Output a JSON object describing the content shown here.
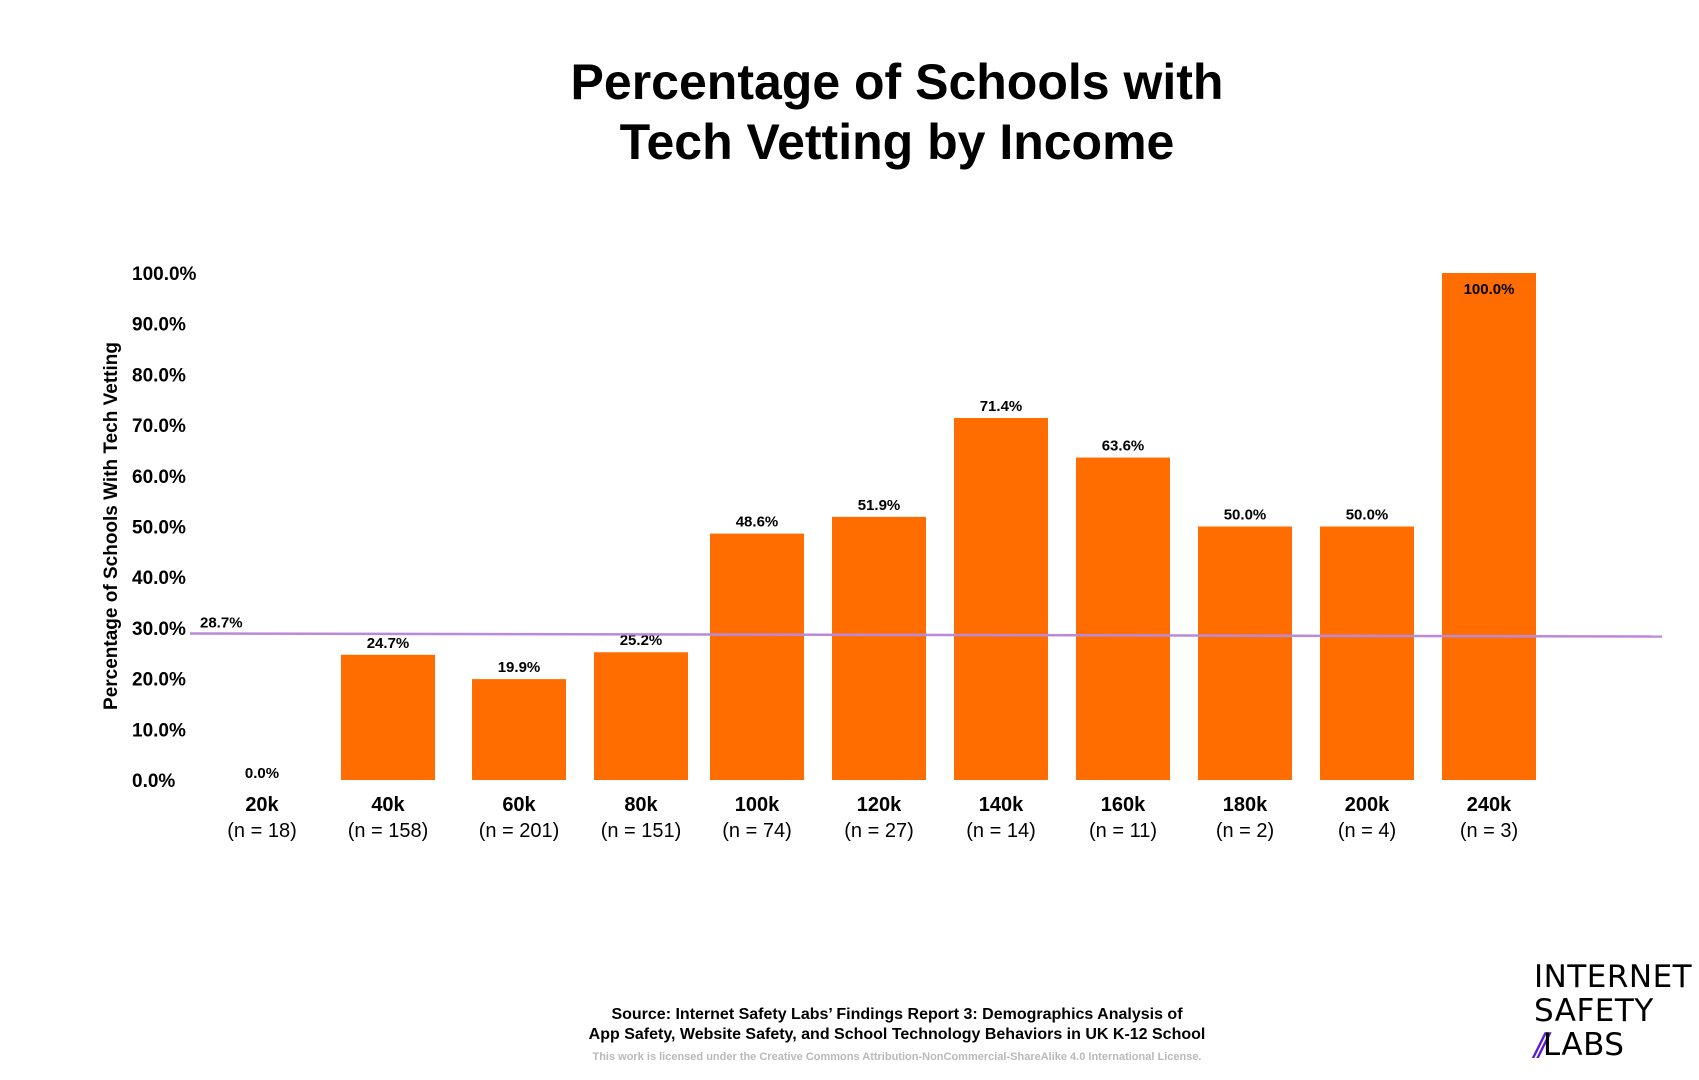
{
  "title_lines": [
    "Percentage of Schools with",
    "Tech Vetting by Income"
  ],
  "footer": {
    "source_lines": [
      "Source: Internet Safety Labs’ Findings Report 3: Demographics Analysis of",
      "App Safety, Website Safety, and School Technology Behaviors in UK K-12 School"
    ],
    "license": "This work is licensed under the Creative Commons Attribution-NonCommercial-ShareAlike 4.0 International License."
  },
  "logo": {
    "line1": "INTERNET",
    "line2": "SAFETY",
    "line3_mark": "//",
    "line3_text": "LABS",
    "accent_color": "#5b1fd1"
  },
  "chart_data": {
    "type": "bar",
    "title": "Percentage of Schools with Tech Vetting by Income",
    "xlabel": "",
    "ylabel": "Percentage of Schools With Tech Vetting",
    "ylim": [
      0,
      100
    ],
    "yticks": [
      "0.0%",
      "10.0%",
      "20.0%",
      "30.0%",
      "40.0%",
      "50.0%",
      "60.0%",
      "70.0%",
      "80.0%",
      "90.0%",
      "100.0%"
    ],
    "categories": [
      "20k",
      "40k",
      "60k",
      "80k",
      "100k",
      "120k",
      "140k",
      "160k",
      "180k",
      "200k",
      "240k"
    ],
    "sample_sizes": [
      "(n = 18)",
      "(n = 158)",
      "(n = 201)",
      "(n = 151)",
      "(n = 74)",
      "(n = 27)",
      "(n = 14)",
      "(n = 11)",
      "(n = 2)",
      "(n = 4)",
      "(n = 3)"
    ],
    "values": [
      0.0,
      24.7,
      19.9,
      25.2,
      48.6,
      51.9,
      71.4,
      63.6,
      50.0,
      50.0,
      100.0
    ],
    "value_labels": [
      "0.0%",
      "24.7%",
      "19.9%",
      "25.2%",
      "48.6%",
      "51.9%",
      "71.4%",
      "63.6%",
      "50.0%",
      "50.0%",
      "100.0%"
    ],
    "average": {
      "value": 28.7,
      "label": "28.7%"
    },
    "grid": false,
    "legend": "none",
    "colors": {
      "bar": "#ff6d00",
      "average_line": "#b98ad9",
      "text": "#000000"
    }
  }
}
